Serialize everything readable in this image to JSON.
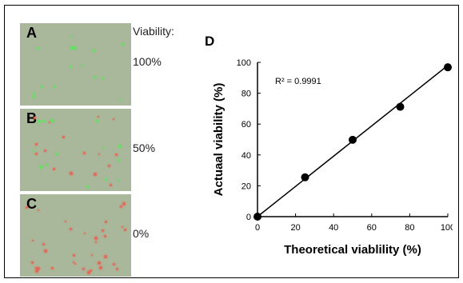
{
  "figure": {
    "viability_label": "Viability:",
    "panels": [
      {
        "letter": "A",
        "value": "100%"
      },
      {
        "letter": "B",
        "value": "50%"
      },
      {
        "letter": "C",
        "value": "0%"
      }
    ],
    "chart_letter": "D"
  },
  "colors": {
    "live_cell": "#63e163",
    "dead_cell": "#e36a5a",
    "panel_bg": "#a9b79a"
  },
  "chart_data": {
    "type": "scatter",
    "xlabel": "Theoretical viablility (%)",
    "ylabel": "Actuaal viability (%)",
    "annotation": "R² = 0.9991",
    "xlim": [
      0,
      100
    ],
    "ylim": [
      0,
      100
    ],
    "x_ticks": [
      "0",
      "20",
      "40",
      "60",
      "80",
      "100"
    ],
    "y_ticks": [
      "0",
      "20",
      "40",
      "60",
      "80",
      "100"
    ],
    "grid": false,
    "series": [
      {
        "x": [
          0,
          25,
          50,
          75,
          100
        ],
        "y": [
          0,
          25.5,
          49.8,
          71.2,
          96.8
        ]
      }
    ],
    "fit_line": {
      "x": [
        0,
        100
      ],
      "y": [
        0,
        98
      ]
    }
  }
}
